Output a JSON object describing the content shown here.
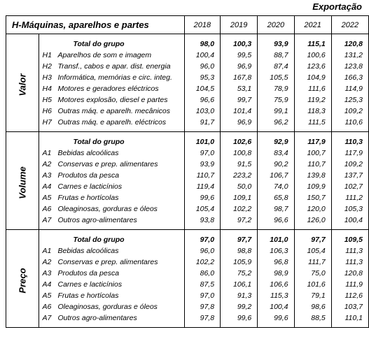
{
  "corner": "Exportação",
  "header": {
    "title": "H-Máquinas, aparelhos e partes",
    "years": [
      "2018",
      "2019",
      "2020",
      "2021",
      "2022"
    ]
  },
  "sections": [
    {
      "label": "Valor",
      "total": {
        "label": "Total do grupo",
        "values": [
          "98,0",
          "100,3",
          "93,9",
          "115,1",
          "120,8"
        ]
      },
      "rows": [
        {
          "code": "H1",
          "label": "Aparelhos de som e imagem",
          "values": [
            "100,4",
            "99,5",
            "88,7",
            "100,6",
            "131,2"
          ]
        },
        {
          "code": "H2",
          "label": "Transf., cabos e apar. dist. energia",
          "values": [
            "96,0",
            "96,9",
            "87,4",
            "123,6",
            "123,8"
          ]
        },
        {
          "code": "H3",
          "label": "Informática, memórias e circ. integ.",
          "values": [
            "95,3",
            "167,8",
            "105,5",
            "104,9",
            "166,3"
          ]
        },
        {
          "code": "H4",
          "label": "Motores e geradores eléctricos",
          "values": [
            "104,5",
            "53,1",
            "78,9",
            "111,6",
            "114,9"
          ]
        },
        {
          "code": "H5",
          "label": "Motores explosão,  diesel e partes",
          "values": [
            "96,6",
            "99,7",
            "75,9",
            "119,2",
            "125,3"
          ]
        },
        {
          "code": "H6",
          "label": "Outras máq. e aparelh. mecânicos",
          "values": [
            "103,0",
            "101,4",
            "99,1",
            "118,3",
            "109,2"
          ]
        },
        {
          "code": "H7",
          "label": "Outras máq. e aparelh. eléctricos",
          "values": [
            "91,7",
            "96,9",
            "96,2",
            "111,5",
            "110,6"
          ]
        }
      ]
    },
    {
      "label": "Volume",
      "total": {
        "label": "Total do grupo",
        "values": [
          "101,0",
          "102,6",
          "92,9",
          "117,9",
          "110,3"
        ]
      },
      "rows": [
        {
          "code": "A1",
          "label": "Bebidas alcoólicas",
          "values": [
            "97,0",
            "100,8",
            "83,4",
            "100,7",
            "117,9"
          ]
        },
        {
          "code": "A2",
          "label": "Conservas e prep. alimentares",
          "values": [
            "93,9",
            "91,5",
            "90,2",
            "110,7",
            "109,2"
          ]
        },
        {
          "code": "A3",
          "label": "Produtos da pesca",
          "values": [
            "110,7",
            "223,2",
            "106,7",
            "139,8",
            "137,7"
          ]
        },
        {
          "code": "A4",
          "label": "Carnes e lacticínios",
          "values": [
            "119,4",
            "50,0",
            "74,0",
            "109,9",
            "102,7"
          ]
        },
        {
          "code": "A5",
          "label": "Frutas e hortícolas",
          "values": [
            "99,6",
            "109,1",
            "65,8",
            "150,7",
            "111,2"
          ]
        },
        {
          "code": "A6",
          "label": "Oleaginosas, gorduras e óleos",
          "values": [
            "105,4",
            "102,2",
            "98,7",
            "120,0",
            "105,3"
          ]
        },
        {
          "code": "A7",
          "label": "Outros agro-alimentares",
          "values": [
            "93,8",
            "97,2",
            "96,6",
            "126,0",
            "100,4"
          ]
        }
      ]
    },
    {
      "label": "Preço",
      "total": {
        "label": "Total do grupo",
        "values": [
          "97,0",
          "97,7",
          "101,0",
          "97,7",
          "109,5"
        ]
      },
      "rows": [
        {
          "code": "A1",
          "label": "Bebidas alcoólicas",
          "values": [
            "96,0",
            "98,8",
            "106,3",
            "105,4",
            "111,3"
          ]
        },
        {
          "code": "A2",
          "label": "Conservas e prep. alimentares",
          "values": [
            "102,2",
            "105,9",
            "96,8",
            "111,7",
            "111,3"
          ]
        },
        {
          "code": "A3",
          "label": "Produtos da pesca",
          "values": [
            "86,0",
            "75,2",
            "98,9",
            "75,0",
            "120,8"
          ]
        },
        {
          "code": "A4",
          "label": "Carnes e lacticínios",
          "values": [
            "87,5",
            "106,1",
            "106,6",
            "101,6",
            "111,9"
          ]
        },
        {
          "code": "A5",
          "label": "Frutas e hortícolas",
          "values": [
            "97,0",
            "91,3",
            "115,3",
            "79,1",
            "112,6"
          ]
        },
        {
          "code": "A6",
          "label": "Oleaginosas, gorduras e óleos",
          "values": [
            "97,8",
            "99,2",
            "100,4",
            "98,6",
            "103,7"
          ]
        },
        {
          "code": "A7",
          "label": "Outros agro-alimentares",
          "values": [
            "97,8",
            "99,6",
            "99,6",
            "88,5",
            "110,1"
          ]
        }
      ]
    }
  ]
}
